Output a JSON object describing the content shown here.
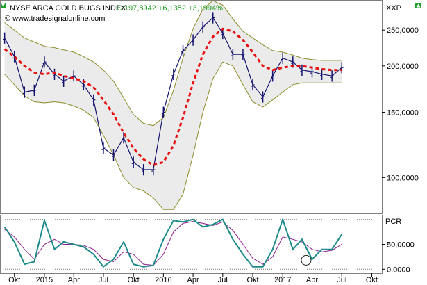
{
  "chart_data": [
    {
      "type": "line",
      "panel": "price",
      "title": "NYSE ARCA GOLD BUGS INDEX",
      "quote": "C:197,8942 +6,1352 +3,1994%",
      "watermark": "© www.tradesignalonline.com",
      "axis_label": "XXP",
      "scale": "log",
      "ylim": [
        80,
        300
      ],
      "yticks": [
        {
          "value": 250,
          "label": "250,0000"
        },
        {
          "value": 200,
          "label": "200,0000"
        },
        {
          "value": 150,
          "label": "150,0000"
        },
        {
          "value": 100,
          "label": "100,0000"
        }
      ],
      "x": [
        "2014-09-01",
        "2014-10-01",
        "2014-11-01",
        "2014-12-01",
        "2015-01-01",
        "2015-02-01",
        "2015-03-01",
        "2015-04-01",
        "2015-05-01",
        "2015-06-01",
        "2015-07-01",
        "2015-08-01",
        "2015-09-01",
        "2015-10-01",
        "2015-11-01",
        "2015-12-01",
        "2016-01-01",
        "2016-02-01",
        "2016-03-01",
        "2016-04-01",
        "2016-05-01",
        "2016-06-01",
        "2016-07-01",
        "2016-08-01",
        "2016-09-01",
        "2016-10-01",
        "2016-11-01",
        "2016-12-01",
        "2017-01-01",
        "2017-02-01",
        "2017-03-01",
        "2017-04-01",
        "2017-05-01",
        "2017-06-01",
        "2017-07-01"
      ],
      "series": [
        {
          "key": "close",
          "values": [
            238,
            212,
            170,
            172,
            205,
            190,
            182,
            188,
            178,
            162,
            120,
            115,
            128,
            110,
            105,
            105,
            150,
            190,
            220,
            235,
            255,
            270,
            245,
            215,
            215,
            178,
            165,
            188,
            210,
            205,
            195,
            193,
            190,
            188,
            198
          ]
        },
        {
          "key": "sma",
          "values": [
            222,
            212,
            200,
            192,
            190,
            192,
            188,
            185,
            182,
            175,
            162,
            148,
            132,
            120,
            112,
            108,
            110,
            122,
            145,
            180,
            215,
            240,
            252,
            248,
            235,
            218,
            200,
            195,
            198,
            200,
            200,
            198,
            196,
            195,
            195
          ]
        },
        {
          "key": "upper",
          "values": [
            262,
            250,
            238,
            232,
            226,
            224,
            221,
            218,
            212,
            205,
            195,
            182,
            164,
            148,
            140,
            138,
            145,
            172,
            210,
            252,
            285,
            300,
            292,
            268,
            248,
            238,
            228,
            220,
            218,
            214,
            210,
            208,
            207,
            207,
            207
          ]
        },
        {
          "key": "lower",
          "values": [
            190,
            178,
            166,
            160,
            159,
            160,
            159,
            156,
            152,
            145,
            130,
            115,
            100,
            94,
            92,
            88,
            82,
            82,
            90,
            115,
            150,
            185,
            205,
            200,
            178,
            160,
            155,
            162,
            170,
            178,
            180,
            180,
            180,
            180,
            180
          ]
        }
      ],
      "colors": {
        "price": "#14146e",
        "sma": "#e81010",
        "bands": "#8c8c28",
        "band_fill": "#ebebeb"
      }
    },
    {
      "type": "line",
      "panel": "indicator",
      "axis_label": "PCR",
      "ylim": [
        -8,
        108
      ],
      "yticks": [
        {
          "value": 50,
          "label": "50,0000"
        },
        {
          "value": 0,
          "label": "0,0000"
        }
      ],
      "guides": [
        100,
        0
      ],
      "x": [
        "2014-09-01",
        "2014-10-01",
        "2014-11-01",
        "2014-12-01",
        "2015-01-01",
        "2015-02-01",
        "2015-03-01",
        "2015-04-01",
        "2015-05-01",
        "2015-06-01",
        "2015-07-01",
        "2015-08-01",
        "2015-09-01",
        "2015-10-01",
        "2015-11-01",
        "2015-12-01",
        "2016-01-01",
        "2016-02-01",
        "2016-03-01",
        "2016-04-01",
        "2016-05-01",
        "2016-06-01",
        "2016-07-01",
        "2016-08-01",
        "2016-09-01",
        "2016-10-01",
        "2016-11-01",
        "2016-12-01",
        "2017-01-01",
        "2017-02-01",
        "2017-03-01",
        "2017-04-01",
        "2017-05-01",
        "2017-06-01",
        "2017-07-01"
      ],
      "series": [
        {
          "key": "pcr",
          "values": [
            85,
            55,
            10,
            15,
            98,
            40,
            55,
            50,
            45,
            30,
            5,
            20,
            55,
            10,
            5,
            8,
            60,
            98,
            95,
            100,
            85,
            90,
            100,
            60,
            30,
            5,
            5,
            40,
            100,
            40,
            60,
            20,
            40,
            40,
            70
          ]
        },
        {
          "key": "signal",
          "values": [
            80,
            65,
            40,
            20,
            50,
            60,
            50,
            50,
            48,
            40,
            20,
            15,
            35,
            30,
            10,
            8,
            30,
            75,
            92,
            96,
            92,
            88,
            95,
            78,
            50,
            22,
            10,
            25,
            65,
            60,
            55,
            40,
            35,
            38,
            50
          ]
        }
      ],
      "colors": {
        "pcr": "#1c8a8a",
        "signal": "#8c1c8c"
      }
    }
  ],
  "x_axis": {
    "labels": [
      {
        "date": "2014-10-01",
        "label": "Okt"
      },
      {
        "date": "2015-01-01",
        "label": "2015"
      },
      {
        "date": "2015-04-01",
        "label": "Apr"
      },
      {
        "date": "2015-07-01",
        "label": "Jul"
      },
      {
        "date": "2015-10-01",
        "label": "Okt"
      },
      {
        "date": "2016-01-01",
        "label": "2016"
      },
      {
        "date": "2016-04-01",
        "label": "Apr"
      },
      {
        "date": "2016-07-01",
        "label": "Jul"
      },
      {
        "date": "2016-10-01",
        "label": "Okt"
      },
      {
        "date": "2017-01-01",
        "label": "2017"
      },
      {
        "date": "2017-04-01",
        "label": "Apr"
      },
      {
        "date": "2017-07-01",
        "label": "Jul"
      },
      {
        "date": "2017-10-01",
        "label": "Okt"
      }
    ],
    "start": "2014-08-20",
    "end": "2017-11-01"
  },
  "header_icons": [
    "arrow-down-icon",
    "arrow-up-icon"
  ]
}
